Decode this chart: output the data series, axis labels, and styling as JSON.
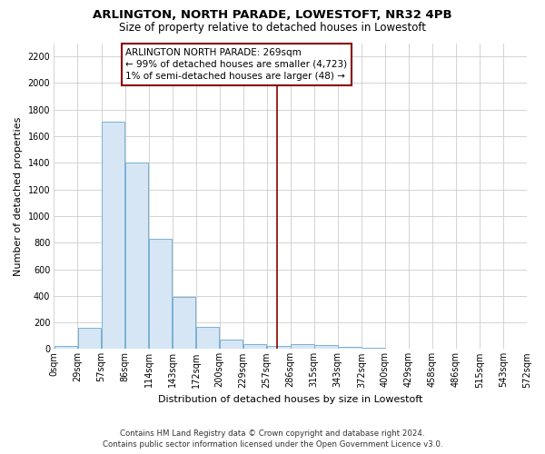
{
  "title": "ARLINGTON, NORTH PARADE, LOWESTOFT, NR32 4PB",
  "subtitle": "Size of property relative to detached houses in Lowestoft",
  "xlabel": "Distribution of detached houses by size in Lowestoft",
  "ylabel": "Number of detached properties",
  "footer_line1": "Contains HM Land Registry data © Crown copyright and database right 2024.",
  "footer_line2": "Contains public sector information licensed under the Open Government Licence v3.0.",
  "annotation_line1": "ARLINGTON NORTH PARADE: 269sqm",
  "annotation_line2": "← 99% of detached houses are smaller (4,723)",
  "annotation_line3": "1% of semi-detached houses are larger (48) →",
  "bar_edges": [
    0,
    28.5,
    57,
    85.5,
    114,
    142.5,
    171,
    199.5,
    228,
    256.5,
    285,
    313.5,
    342,
    370.5,
    399,
    427.5,
    456,
    484.5,
    513,
    541.5,
    570
  ],
  "bar_labels": [
    "0sqm",
    "29sqm",
    "57sqm",
    "86sqm",
    "114sqm",
    "143sqm",
    "172sqm",
    "200sqm",
    "229sqm",
    "257sqm",
    "286sqm",
    "315sqm",
    "343sqm",
    "372sqm",
    "400sqm",
    "429sqm",
    "458sqm",
    "486sqm",
    "515sqm",
    "543sqm",
    "572sqm"
  ],
  "bar_heights": [
    20,
    160,
    1710,
    1400,
    830,
    390,
    165,
    70,
    35,
    25,
    35,
    30,
    15,
    8,
    5,
    3,
    2,
    2,
    1,
    1
  ],
  "bar_color": "#d6e6f5",
  "bar_edgecolor": "#7ab0d4",
  "vline_color": "#8b0000",
  "vline_x": 269,
  "annotation_box_edgecolor": "#8b0000",
  "annotation_fill": "white",
  "ylim": [
    0,
    2300
  ],
  "yticks": [
    0,
    200,
    400,
    600,
    800,
    1000,
    1200,
    1400,
    1600,
    1800,
    2000,
    2200
  ],
  "bg_color": "#ffffff",
  "plot_bg_color": "#ffffff",
  "grid_color": "#cccccc",
  "title_fontsize": 9.5,
  "subtitle_fontsize": 8.5,
  "tick_fontsize": 7,
  "ylabel_fontsize": 8,
  "xlabel_fontsize": 8,
  "annotation_fontsize": 7.5,
  "footer_fontsize": 6.2
}
